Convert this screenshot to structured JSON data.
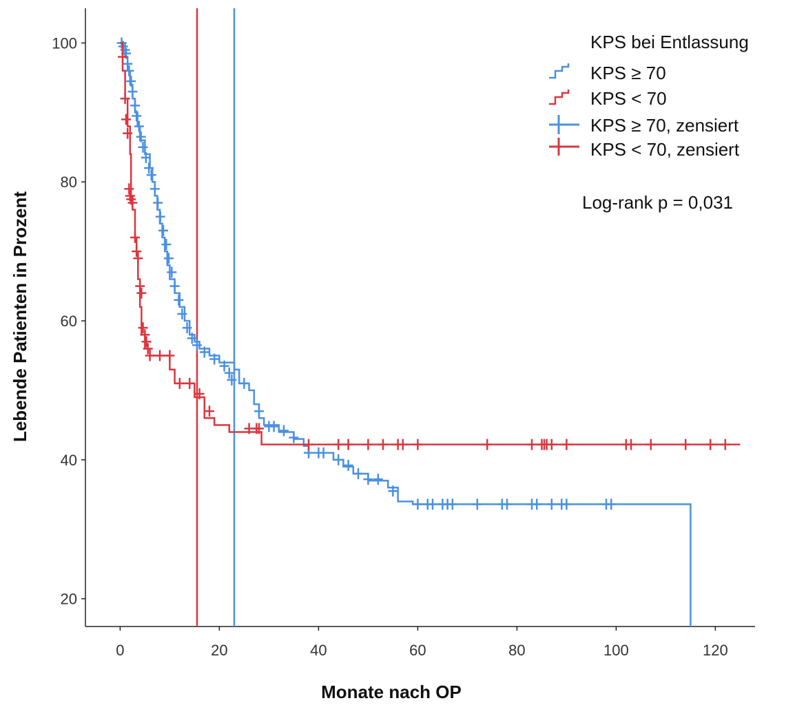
{
  "chart_data": {
    "type": "line",
    "title": "",
    "xlabel": "Monate nach OP",
    "ylabel": "Lebende Patienten in Prozent",
    "xlim": [
      -7,
      128
    ],
    "ylim": [
      16,
      105
    ],
    "x_ticks": [
      0,
      20,
      40,
      60,
      80,
      100,
      120
    ],
    "y_ticks": [
      20,
      40,
      60,
      80,
      100
    ],
    "grid": false,
    "legend_placement": "top-right",
    "legend_title": "KPS bei Entlassung",
    "legend_entries": [
      "KPS ≥ 70",
      "KPS <  70",
      "KPS ≥ 70, zensiert",
      "KPS <  70, zensiert"
    ],
    "annotation": "Log-rank p = 0,031",
    "series": [
      {
        "name": "KPS ≥ 70",
        "color": "#4a90e2",
        "step": [
          [
            0,
            100
          ],
          [
            1,
            98
          ],
          [
            1.5,
            96
          ],
          [
            2,
            94
          ],
          [
            2.5,
            92
          ],
          [
            3,
            90
          ],
          [
            3.5,
            88
          ],
          [
            4,
            86
          ],
          [
            5,
            84
          ],
          [
            6,
            82
          ],
          [
            6.5,
            80
          ],
          [
            7,
            78
          ],
          [
            7.5,
            76
          ],
          [
            8,
            74
          ],
          [
            8.5,
            72
          ],
          [
            9,
            70
          ],
          [
            9.5,
            68
          ],
          [
            10,
            66
          ],
          [
            11,
            64
          ],
          [
            12,
            62
          ],
          [
            13,
            60
          ],
          [
            14,
            58
          ],
          [
            15,
            57
          ],
          [
            16,
            56
          ],
          [
            18,
            55
          ],
          [
            20,
            54
          ],
          [
            23,
            53
          ],
          [
            24,
            51
          ],
          [
            26,
            50
          ],
          [
            27,
            48
          ],
          [
            28,
            46
          ],
          [
            29,
            45
          ],
          [
            32,
            44
          ],
          [
            35,
            43
          ],
          [
            37,
            42
          ],
          [
            38,
            41
          ],
          [
            43,
            40
          ],
          [
            45,
            39
          ],
          [
            47,
            38
          ],
          [
            50,
            37
          ],
          [
            54,
            36
          ],
          [
            56,
            34
          ],
          [
            59,
            33.6
          ],
          [
            115,
            33.6
          ],
          [
            115,
            16
          ]
        ],
        "median": 23,
        "censored": [
          [
            0.3,
            100
          ],
          [
            0.6,
            99.5
          ],
          [
            1,
            99
          ],
          [
            1.2,
            98.5
          ],
          [
            1.5,
            97
          ],
          [
            1.8,
            96
          ],
          [
            2.2,
            94.5
          ],
          [
            2.5,
            93
          ],
          [
            3,
            91
          ],
          [
            3.3,
            89.5
          ],
          [
            3.8,
            88
          ],
          [
            4.2,
            86.5
          ],
          [
            4.6,
            85
          ],
          [
            5.2,
            83.5
          ],
          [
            5.8,
            82
          ],
          [
            6.3,
            81
          ],
          [
            7,
            79
          ],
          [
            7.6,
            77
          ],
          [
            8.1,
            75
          ],
          [
            8.7,
            73
          ],
          [
            9.3,
            71
          ],
          [
            9.8,
            69
          ],
          [
            10.4,
            67
          ],
          [
            11,
            65
          ],
          [
            11.8,
            63
          ],
          [
            12.5,
            61
          ],
          [
            13.5,
            59
          ],
          [
            14.5,
            57.5
          ],
          [
            15.5,
            56.5
          ],
          [
            17,
            55.5
          ],
          [
            19,
            54.5
          ],
          [
            21,
            53.5
          ],
          [
            22,
            52.5
          ],
          [
            22.5,
            51.5
          ],
          [
            25,
            51
          ],
          [
            28,
            47
          ],
          [
            30,
            44.8
          ],
          [
            31,
            44.8
          ],
          [
            33,
            44.2
          ],
          [
            35,
            43.2
          ],
          [
            38,
            41
          ],
          [
            40,
            41
          ],
          [
            41,
            41
          ],
          [
            44,
            40
          ],
          [
            46,
            39.2
          ],
          [
            48,
            38
          ],
          [
            50,
            37.2
          ],
          [
            52,
            37.2
          ],
          [
            55,
            35.5
          ],
          [
            60,
            33.6
          ],
          [
            62,
            33.6
          ],
          [
            63,
            33.6
          ],
          [
            65,
            33.6
          ],
          [
            66,
            33.6
          ],
          [
            67,
            33.6
          ],
          [
            72,
            33.6
          ],
          [
            77,
            33.6
          ],
          [
            78,
            33.6
          ],
          [
            83,
            33.6
          ],
          [
            84,
            33.6
          ],
          [
            87,
            33.6
          ],
          [
            89,
            33.6
          ],
          [
            90,
            33.6
          ],
          [
            98,
            33.6
          ],
          [
            99,
            33.6
          ]
        ]
      },
      {
        "name": "KPS <  70",
        "color": "#d9363e",
        "step": [
          [
            0,
            100
          ],
          [
            0.5,
            96
          ],
          [
            1,
            92
          ],
          [
            1.5,
            88
          ],
          [
            2,
            84
          ],
          [
            2.2,
            78
          ],
          [
            2.5,
            76
          ],
          [
            3,
            72
          ],
          [
            3.3,
            70
          ],
          [
            3.6,
            66
          ],
          [
            4,
            62
          ],
          [
            4.3,
            58
          ],
          [
            5,
            56
          ],
          [
            6,
            55
          ],
          [
            10,
            53
          ],
          [
            11,
            51
          ],
          [
            15,
            49
          ],
          [
            17,
            46
          ],
          [
            19,
            45
          ],
          [
            22,
            44
          ],
          [
            27,
            44
          ],
          [
            28.5,
            42.2
          ],
          [
            125,
            42.2
          ]
        ],
        "median": 15.5,
        "censored": [
          [
            0.5,
            98
          ],
          [
            1,
            92
          ],
          [
            1.2,
            89
          ],
          [
            1.5,
            87
          ],
          [
            1.8,
            79
          ],
          [
            2,
            78
          ],
          [
            2.2,
            77.5
          ],
          [
            2.5,
            77
          ],
          [
            3,
            72
          ],
          [
            3.3,
            70
          ],
          [
            3.6,
            69
          ],
          [
            4,
            65
          ],
          [
            4.3,
            64
          ],
          [
            4.6,
            59
          ],
          [
            5,
            58
          ],
          [
            5.3,
            57
          ],
          [
            5.6,
            56
          ],
          [
            6,
            55
          ],
          [
            8,
            55
          ],
          [
            10,
            55
          ],
          [
            12,
            51
          ],
          [
            14,
            51
          ],
          [
            16,
            49.5
          ],
          [
            18,
            47
          ],
          [
            26,
            44.5
          ],
          [
            27.5,
            44.5
          ],
          [
            28,
            44.5
          ],
          [
            38,
            42.2
          ],
          [
            44,
            42.2
          ],
          [
            46,
            42.2
          ],
          [
            50,
            42.2
          ],
          [
            53,
            42.2
          ],
          [
            56,
            42.2
          ],
          [
            57,
            42.2
          ],
          [
            60,
            42.2
          ],
          [
            74,
            42.2
          ],
          [
            83,
            42.2
          ],
          [
            85,
            42.2
          ],
          [
            85.5,
            42.2
          ],
          [
            86,
            42.2
          ],
          [
            87,
            42.2
          ],
          [
            90,
            42.2
          ],
          [
            102,
            42.2
          ],
          [
            103,
            42.2
          ],
          [
            107,
            42.2
          ],
          [
            114,
            42.2
          ],
          [
            119,
            42.2
          ],
          [
            122,
            42.2
          ]
        ]
      }
    ]
  }
}
